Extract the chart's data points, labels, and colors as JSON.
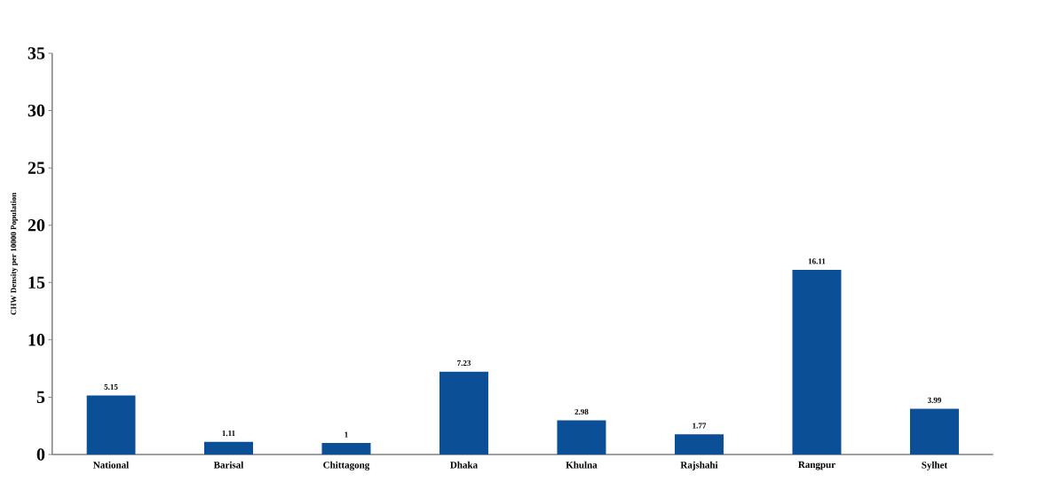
{
  "chart_data": {
    "type": "bar",
    "ylabel": "CHW Density per 10000 Population",
    "categories": [
      "National",
      "Barisal",
      "Chittagong",
      "Dhaka",
      "Khulna",
      "Rajshahi",
      "Rangpur",
      "Sylhet"
    ],
    "values": [
      5.15,
      1.11,
      1,
      7.23,
      2.98,
      1.77,
      16.11,
      3.99
    ],
    "color": "#0b5096",
    "ylim": [
      0,
      35
    ],
    "yticks": [
      0,
      5,
      10,
      15,
      20,
      25,
      30,
      35
    ],
    "data_labels": true
  }
}
